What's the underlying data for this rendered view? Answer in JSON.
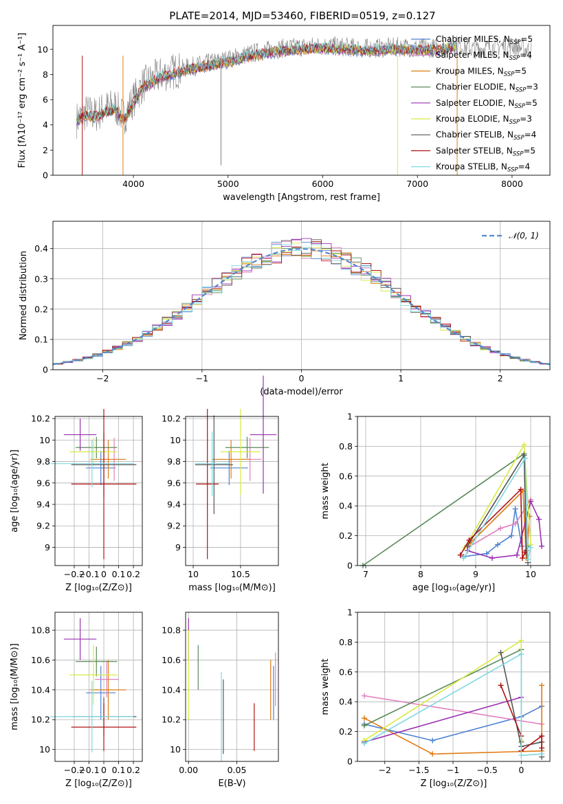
{
  "title": "PLATE=2014, MJD=53460, FIBERID=0519, z=0.127",
  "colors": {
    "Chabrier MILES": "#4c80d0",
    "Salpeter MILES": "#e27fbf",
    "Kroupa MILES": "#e07a10",
    "Chabrier ELODIE": "#5a8a5a",
    "Salpeter ELODIE": "#9a2fb0",
    "Kroupa ELODIE": "#d8ea40",
    "Chabrier STELIB": "#555555",
    "Salpeter STELIB": "#b01010",
    "Kroupa STELIB": "#80d8e0",
    "data": "#808080",
    "normal": "#5588cc"
  },
  "chart_data": [
    {
      "id": "spectrum",
      "type": "line",
      "xlabel": "wavelength [Angstrom, rest frame]",
      "ylabel": "Flux [fλ10⁻¹⁷ erg cm⁻² s⁻¹ A⁻¹]",
      "xlim": [
        3150,
        8400
      ],
      "ylim": [
        0,
        11.9
      ],
      "xticks": [
        4000,
        5000,
        6000,
        7000,
        8000
      ],
      "yticks": [
        0,
        2,
        4,
        6,
        8,
        10
      ],
      "legend": "top-right",
      "legend_entries": [
        {
          "name": "Chabrier MILES",
          "nssp": "5"
        },
        {
          "name": "Salpeter MILES",
          "nssp": "4"
        },
        {
          "name": "Kroupa MILES",
          "nssp": "5"
        },
        {
          "name": "Chabrier ELODIE",
          "nssp": "3"
        },
        {
          "name": "Salpeter ELODIE",
          "nssp": "5"
        },
        {
          "name": "Kroupa ELODIE",
          "nssp": "3"
        },
        {
          "name": "Chabrier STELIB",
          "nssp": "4"
        },
        {
          "name": "Salpeter STELIB",
          "nssp": "5"
        },
        {
          "name": "Kroupa STELIB",
          "nssp": "4"
        }
      ],
      "data_x": [
        3400,
        3500,
        3600,
        3700,
        3800,
        3900,
        4000,
        4100,
        4200,
        4300,
        4400,
        4600,
        4800,
        5000,
        5200,
        5400,
        5600,
        5800,
        6000,
        6200,
        6400,
        6600,
        6800,
        7000,
        7200,
        7400,
        7600,
        7800,
        8000,
        8200
      ],
      "data_y": [
        4.4,
        5.0,
        4.8,
        5.3,
        5.5,
        4.6,
        6.0,
        7.2,
        7.6,
        8.0,
        8.2,
        8.6,
        8.9,
        9.2,
        9.6,
        9.9,
        10.1,
        10.2,
        10.3,
        10.2,
        10.1,
        10.1,
        10.2,
        10.1,
        10.1,
        10.4,
        10.0,
        10.2,
        10.3,
        9.9
      ],
      "model_x": [
        3400,
        3500,
        3600,
        3700,
        3800,
        3900,
        4000,
        4100,
        4200,
        4300,
        4400,
        4600,
        4800,
        5000,
        5200,
        5400,
        5600,
        5800,
        6000,
        6200,
        6400,
        6600,
        6800,
        7000,
        7200,
        7400
      ],
      "model_y": [
        4.3,
        4.8,
        4.6,
        5.0,
        5.2,
        4.4,
        5.7,
        7.0,
        7.4,
        7.8,
        8.0,
        8.4,
        8.7,
        9.0,
        9.4,
        9.7,
        9.9,
        10.0,
        10.1,
        10.0,
        9.9,
        9.9,
        10.0,
        9.9,
        9.9,
        10.2
      ]
    },
    {
      "id": "residuals",
      "type": "area",
      "xlabel": "(data-model)/error",
      "ylabel": "Normed distribution",
      "xlim": [
        -2.5,
        2.5
      ],
      "ylim": [
        0,
        0.49
      ],
      "xticks": [
        -2,
        -1,
        0,
        1,
        2
      ],
      "yticks": [
        0.0,
        0.1,
        0.2,
        0.3,
        0.4
      ],
      "legend": "top-right",
      "legend_entries": [
        {
          "name": "𝒩(0, 1)"
        }
      ],
      "bin_width": 0.1,
      "mu": 0,
      "sigma": 1
    },
    {
      "id": "age_vs_Z",
      "type": "scatter",
      "xlabel": "Z [log₁₀(Z/Z⊙)]",
      "ylabel": "age  [log₁₀(age/yr)]",
      "xlim": [
        -0.33,
        0.26
      ],
      "ylim": [
        8.83,
        10.22
      ],
      "xticks": [
        -0.2,
        -0.1,
        0.0,
        0.1,
        0.2
      ],
      "yticks": [
        9.0,
        9.2,
        9.4,
        9.6,
        9.8,
        10.0,
        10.2
      ],
      "points": [
        {
          "model": "Chabrier MILES",
          "x": -0.02,
          "y": 9.74,
          "xerr": 0.1,
          "yerr": 0.16
        },
        {
          "model": "Salpeter MILES",
          "x": 0.07,
          "y": 9.82,
          "xerr": 0.06,
          "yerr": 0.2
        },
        {
          "model": "Kroupa MILES",
          "x": 0.03,
          "y": 9.82,
          "xerr": 0.12,
          "yerr": 0.18
        },
        {
          "model": "Chabrier ELODIE",
          "x": -0.05,
          "y": 9.93,
          "xerr": 0.14,
          "yerr": 0.1
        },
        {
          "model": "Salpeter ELODIE",
          "x": -0.16,
          "y": 10.05,
          "xerr": 0.11,
          "yerr": 0.15
        },
        {
          "model": "Kroupa ELODIE",
          "x": -0.07,
          "y": 9.89,
          "xerr": 0.16,
          "yerr": 0.13
        },
        {
          "model": "Chabrier STELIB",
          "x": 0.0,
          "y": 9.77,
          "xerr": 0.22,
          "yerr": 0.3
        },
        {
          "model": "Salpeter STELIB",
          "x": 0.0,
          "y": 9.59,
          "xerr": 0.22,
          "yerr": 0.7
        },
        {
          "model": "Kroupa STELIB",
          "x": -0.08,
          "y": 9.78,
          "xerr": 0.28,
          "yerr": 0.22
        }
      ]
    },
    {
      "id": "age_vs_mass",
      "type": "scatter",
      "xlabel": "mass [log₁₀(M/M⊙)]",
      "ylabel": "",
      "xlim": [
        9.92,
        10.9
      ],
      "ylim": [
        8.83,
        10.22
      ],
      "xticks": [
        10.0,
        10.5
      ],
      "yticks": [
        9.0,
        9.2,
        9.4,
        9.6,
        9.8,
        10.0,
        10.2
      ],
      "points": [
        {
          "model": "Chabrier MILES",
          "x": 10.38,
          "y": 9.74,
          "xerr": 0.2,
          "yerr": 0.16
        },
        {
          "model": "Salpeter MILES",
          "x": 10.6,
          "y": 9.82,
          "xerr": 0.12,
          "yerr": 0.2
        },
        {
          "model": "Kroupa MILES",
          "x": 10.4,
          "y": 9.82,
          "xerr": 0.2,
          "yerr": 0.18
        },
        {
          "model": "Chabrier ELODIE",
          "x": 10.57,
          "y": 9.93,
          "xerr": 0.23,
          "yerr": 0.1
        },
        {
          "model": "Salpeter ELODIE",
          "x": 10.74,
          "y": 10.05,
          "xerr": 0.14,
          "yerr": 0.55
        },
        {
          "model": "Kroupa ELODIE",
          "x": 10.5,
          "y": 9.89,
          "xerr": 0.21,
          "yerr": 0.4
        },
        {
          "model": "Chabrier STELIB",
          "x": 10.22,
          "y": 9.77,
          "xerr": 0.2,
          "yerr": 0.46
        },
        {
          "model": "Salpeter STELIB",
          "x": 10.15,
          "y": 9.59,
          "xerr": 0.12,
          "yerr": 0.7
        },
        {
          "model": "Kroupa STELIB",
          "x": 10.2,
          "y": 9.78,
          "xerr": 0.18,
          "yerr": 0.3
        }
      ]
    },
    {
      "id": "weight_vs_age",
      "type": "line",
      "xlabel": "age  [log₁₀(age/yr)]",
      "ylabel": "mass weight",
      "xlim": [
        6.85,
        10.35
      ],
      "ylim": [
        0,
        1.0
      ],
      "xticks": [
        7,
        8,
        9,
        10
      ],
      "yticks": [
        0.0,
        0.2,
        0.4,
        0.6,
        0.8,
        1.0
      ],
      "series": [
        {
          "model": "Chabrier MILES",
          "x": [
            8.78,
            9.2,
            9.4,
            9.65,
            9.72,
            9.84
          ],
          "y": [
            0.06,
            0.08,
            0.14,
            0.2,
            0.38,
            0.13
          ]
        },
        {
          "model": "Salpeter MILES",
          "x": [
            8.85,
            9.45,
            9.72,
            10.0
          ],
          "y": [
            0.12,
            0.25,
            0.28,
            0.44
          ]
        },
        {
          "model": "Kroupa MILES",
          "x": [
            8.9,
            9.86,
            9.92,
            9.98
          ],
          "y": [
            0.15,
            0.5,
            0.05,
            0.33
          ]
        },
        {
          "model": "Chabrier ELODIE",
          "x": [
            6.95,
            9.88,
            9.95
          ],
          "y": [
            0.0,
            0.75,
            0.13
          ]
        },
        {
          "model": "Salpeter ELODIE",
          "x": [
            8.85,
            9.3,
            9.75,
            10.0,
            10.15,
            10.2
          ],
          "y": [
            0.1,
            0.05,
            0.07,
            0.43,
            0.31,
            0.13
          ]
        },
        {
          "model": "Kroupa ELODIE",
          "x": [
            8.8,
            9.88,
            10.0
          ],
          "y": [
            0.12,
            0.81,
            0.14
          ]
        },
        {
          "model": "Chabrier STELIB",
          "x": [
            8.85,
            9.88,
            9.92,
            9.95
          ],
          "y": [
            0.13,
            0.74,
            0.1,
            0.02
          ]
        },
        {
          "model": "Salpeter STELIB",
          "x": [
            8.72,
            8.88,
            9.82,
            9.85,
            9.9
          ],
          "y": [
            0.07,
            0.17,
            0.51,
            0.05,
            0.09
          ]
        },
        {
          "model": "Kroupa STELIB",
          "x": [
            8.78,
            9.9,
            9.95,
            10.0
          ],
          "y": [
            0.05,
            0.72,
            0.04,
            0.12
          ]
        }
      ]
    },
    {
      "id": "mass_vs_Z",
      "type": "scatter",
      "xlabel": "Z [log₁₀(Z/Z⊙)]",
      "ylabel": "mass [log₁₀(M/M⊙)]",
      "xlim": [
        -0.33,
        0.26
      ],
      "ylim": [
        9.92,
        10.92
      ],
      "xticks": [
        -0.2,
        -0.1,
        0.0,
        0.1,
        0.2
      ],
      "yticks": [
        10.0,
        10.2,
        10.4,
        10.6,
        10.8
      ],
      "points": [
        {
          "model": "Chabrier MILES",
          "x": -0.02,
          "y": 10.38,
          "xerr": 0.1,
          "yerr": 0.18
        },
        {
          "model": "Salpeter MILES",
          "x": 0.02,
          "y": 10.47,
          "xerr": 0.08,
          "yerr": 0.12
        },
        {
          "model": "Kroupa MILES",
          "x": 0.03,
          "y": 10.4,
          "xerr": 0.12,
          "yerr": 0.2
        },
        {
          "model": "Chabrier ELODIE",
          "x": -0.05,
          "y": 10.59,
          "xerr": 0.14,
          "yerr": 0.1
        },
        {
          "model": "Salpeter ELODIE",
          "x": -0.16,
          "y": 10.74,
          "xerr": 0.11,
          "yerr": 0.14
        },
        {
          "model": "Kroupa ELODIE",
          "x": -0.07,
          "y": 10.5,
          "xerr": 0.16,
          "yerr": 0.2
        },
        {
          "model": "Chabrier STELIB",
          "x": 0.0,
          "y": 10.22,
          "xerr": 0.22,
          "yerr": 0.13
        },
        {
          "model": "Salpeter STELIB",
          "x": 0.0,
          "y": 10.15,
          "xerr": 0.22,
          "yerr": 0.16
        },
        {
          "model": "Kroupa STELIB",
          "x": -0.08,
          "y": 10.22,
          "xerr": 0.28,
          "yerr": 0.24
        }
      ]
    },
    {
      "id": "mass_vs_ebv",
      "type": "scatter",
      "xlabel": "E(B-V)",
      "ylabel": "",
      "xlim": [
        -0.003,
        0.093
      ],
      "ylim": [
        9.92,
        10.92
      ],
      "xticks": [
        0.0,
        0.05
      ],
      "xtick_labels": [
        "0.00",
        "0.05"
      ],
      "yticks": [
        10.0,
        10.2,
        10.4,
        10.6,
        10.8
      ],
      "points": [
        {
          "model": "Chabrier MILES",
          "x": 0.088,
          "y": 10.38,
          "yerr": 0.18
        },
        {
          "model": "Salpeter MILES",
          "x": 0.09,
          "y": 10.47,
          "yerr": 0.18
        },
        {
          "model": "Kroupa MILES",
          "x": 0.085,
          "y": 10.4,
          "yerr": 0.2
        },
        {
          "model": "Chabrier ELODIE",
          "x": 0.01,
          "y": 10.55,
          "yerr": 0.15
        },
        {
          "model": "Salpeter ELODIE",
          "x": 0.0,
          "y": 10.74,
          "yerr": 0.14
        },
        {
          "model": "Kroupa ELODIE",
          "x": 0.0,
          "y": 10.5,
          "yerr": 0.3
        },
        {
          "model": "Chabrier STELIB",
          "x": 0.036,
          "y": 10.22,
          "yerr": 0.25
        },
        {
          "model": "Salpeter STELIB",
          "x": 0.068,
          "y": 10.15,
          "yerr": 0.16
        },
        {
          "model": "Kroupa STELIB",
          "x": 0.034,
          "y": 10.22,
          "yerr": 0.3
        }
      ]
    },
    {
      "id": "weight_vs_Z",
      "type": "line",
      "xlabel": "Z [log₁₀(Z/Z⊙)]",
      "ylabel": "mass weight",
      "xlim": [
        -2.4,
        0.42
      ],
      "ylim": [
        0,
        1.0
      ],
      "xticks": [
        -2.0,
        -1.5,
        -1.0,
        -0.5,
        0.0
      ],
      "yticks": [
        0.0,
        0.2,
        0.4,
        0.6,
        0.8,
        1.0
      ],
      "series": [
        {
          "model": "Chabrier MILES",
          "x": [
            -2.3,
            -1.3,
            0.0,
            0.3
          ],
          "y": [
            0.25,
            0.14,
            0.3,
            0.37
          ]
        },
        {
          "model": "Salpeter MILES",
          "x": [
            -2.3,
            0.3
          ],
          "y": [
            0.44,
            0.25
          ]
        },
        {
          "model": "Kroupa MILES",
          "x": [
            -2.3,
            -1.3,
            0.3,
            0.3,
            0.3
          ],
          "y": [
            0.29,
            0.05,
            0.07,
            0.51,
            0.13
          ]
        },
        {
          "model": "Chabrier ELODIE",
          "x": [
            -2.3,
            0.0,
            0.0
          ],
          "y": [
            0.24,
            0.75,
            0.13
          ]
        },
        {
          "model": "Salpeter ELODIE",
          "x": [
            -2.3,
            0.0
          ],
          "y": [
            0.13,
            0.43
          ]
        },
        {
          "model": "Kroupa ELODIE",
          "x": [
            -2.3,
            0.0,
            0.0
          ],
          "y": [
            0.14,
            0.81,
            0.14
          ]
        },
        {
          "model": "Chabrier STELIB",
          "x": [
            -0.3,
            0.0,
            0.3,
            0.3
          ],
          "y": [
            0.73,
            0.1,
            0.13,
            0.03
          ]
        },
        {
          "model": "Salpeter STELIB",
          "x": [
            -0.3,
            0.0,
            0.0,
            0.3,
            0.3
          ],
          "y": [
            0.51,
            0.17,
            0.07,
            0.17,
            0.09
          ]
        },
        {
          "model": "Kroupa STELIB",
          "x": [
            -2.3,
            0.0,
            0.0,
            0.3
          ],
          "y": [
            0.12,
            0.72,
            0.04,
            0.05
          ]
        }
      ]
    }
  ]
}
